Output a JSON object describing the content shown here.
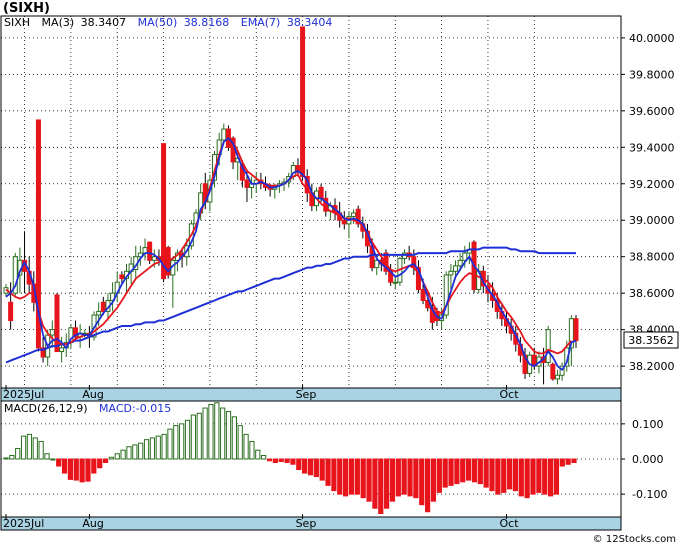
{
  "title": "(SIXH)",
  "indicators": {
    "symbol": "SIXH",
    "ma3_label": "MA(3)",
    "ma3_value": "38.3407",
    "ma50_label": "MA(50)",
    "ma50_value": "38.8168",
    "ema7_label": "EMA(7)",
    "ema7_value": "38.3404"
  },
  "last_price": "38.3562",
  "macd": {
    "label": "MACD(26,12,9)",
    "value_label": "MACD:-0.015"
  },
  "x_axis_labels": [
    "2025Jul",
    "Aug",
    "Sep",
    "Oct"
  ],
  "watermark": "© 12Stocks.com",
  "colors": {
    "up": "#2a6e1f",
    "down": "#e8141c",
    "ma_red": "#e8141c",
    "ma_blue": "#1f2fd6",
    "axis_band": "#a9d3e3"
  },
  "chart_data": [
    {
      "type": "candlestick",
      "title": "(SIXH)",
      "ylim": [
        38.08,
        40.12
      ],
      "yticks": [
        38.2,
        38.4,
        38.6,
        38.8,
        39.0,
        39.2,
        39.4,
        39.6,
        39.8,
        40.0
      ],
      "ytick_labels": [
        "38.2000",
        "38.4000",
        "38.6000",
        "38.8000",
        "39.0000",
        "39.2000",
        "39.4000",
        "39.6000",
        "39.8000",
        "40.0000"
      ],
      "months": [
        {
          "label": "2025Jul",
          "index": 0
        },
        {
          "label": "Aug",
          "index": 18
        },
        {
          "label": "Sep",
          "index": 64
        },
        {
          "label": "Oct",
          "index": 108
        }
      ],
      "candles": [
        [
          38.6,
          38.65,
          38.58,
          38.63
        ],
        [
          38.55,
          38.66,
          38.4,
          38.45
        ],
        [
          38.6,
          38.82,
          38.58,
          38.8
        ],
        [
          38.7,
          38.85,
          38.6,
          38.78
        ],
        [
          38.78,
          38.94,
          38.6,
          38.72
        ],
        [
          38.72,
          38.8,
          38.6,
          38.65
        ],
        [
          38.65,
          38.72,
          38.5,
          38.55
        ],
        [
          39.55,
          39.55,
          38.28,
          38.3
        ],
        [
          38.3,
          38.36,
          38.22,
          38.25
        ],
        [
          38.25,
          38.4,
          38.2,
          38.37
        ],
        [
          38.37,
          38.45,
          38.3,
          38.4
        ],
        [
          38.59,
          38.6,
          38.28,
          38.28
        ],
        [
          38.28,
          38.36,
          38.22,
          38.3
        ],
        [
          38.3,
          38.38,
          38.25,
          38.33
        ],
        [
          38.33,
          38.43,
          38.3,
          38.41
        ],
        [
          38.41,
          38.45,
          38.35,
          38.36
        ],
        [
          38.36,
          38.43,
          38.3,
          38.38
        ],
        [
          38.38,
          38.4,
          38.35,
          38.38
        ],
        [
          38.38,
          38.42,
          38.3,
          38.36
        ],
        [
          38.36,
          38.5,
          38.34,
          38.48
        ],
        [
          38.48,
          38.55,
          38.42,
          38.5
        ],
        [
          38.55,
          38.58,
          38.48,
          38.5
        ],
        [
          38.5,
          38.6,
          38.45,
          38.56
        ],
        [
          38.56,
          38.66,
          38.5,
          38.6
        ],
        [
          38.6,
          38.72,
          38.55,
          38.66
        ],
        [
          38.7,
          38.72,
          38.65,
          38.68
        ],
        [
          38.68,
          38.76,
          38.6,
          38.72
        ],
        [
          38.72,
          38.8,
          38.65,
          38.76
        ],
        [
          38.73,
          38.86,
          38.68,
          38.8
        ],
        [
          38.8,
          38.86,
          38.75,
          38.82
        ],
        [
          38.82,
          38.9,
          38.78,
          38.85
        ],
        [
          38.88,
          38.88,
          38.76,
          38.78
        ],
        [
          38.78,
          38.84,
          38.74,
          38.8
        ],
        [
          38.8,
          38.84,
          38.75,
          38.78
        ],
        [
          39.42,
          39.42,
          38.66,
          38.68
        ],
        [
          38.85,
          38.86,
          38.68,
          38.7
        ],
        [
          38.7,
          38.8,
          38.52,
          38.78
        ],
        [
          38.78,
          38.84,
          38.72,
          38.82
        ],
        [
          38.82,
          38.85,
          38.74,
          38.8
        ],
        [
          38.8,
          38.9,
          38.75,
          38.86
        ],
        [
          38.86,
          39.0,
          38.84,
          38.98
        ],
        [
          38.98,
          39.06,
          38.95,
          39.04
        ],
        [
          39.04,
          39.2,
          39.0,
          39.15
        ],
        [
          39.2,
          39.26,
          39.06,
          39.1
        ],
        [
          39.1,
          39.25,
          39.05,
          39.22
        ],
        [
          39.22,
          39.38,
          39.18,
          39.36
        ],
        [
          39.36,
          39.48,
          39.3,
          39.44
        ],
        [
          39.44,
          39.53,
          39.42,
          39.5
        ],
        [
          39.5,
          39.52,
          39.38,
          39.4
        ],
        [
          39.45,
          39.46,
          39.28,
          39.32
        ],
        [
          39.32,
          39.38,
          39.22,
          39.34
        ],
        [
          39.3,
          39.33,
          39.18,
          39.22
        ],
        [
          39.22,
          39.28,
          39.1,
          39.18
        ],
        [
          39.18,
          39.24,
          39.12,
          39.2
        ],
        [
          39.2,
          39.26,
          39.15,
          39.22
        ],
        [
          39.22,
          39.26,
          39.17,
          39.2
        ],
        [
          39.2,
          39.24,
          39.16,
          39.18
        ],
        [
          39.18,
          39.2,
          39.13,
          39.17
        ],
        [
          39.17,
          39.2,
          39.12,
          39.19
        ],
        [
          39.19,
          39.22,
          39.15,
          39.2
        ],
        [
          39.2,
          39.23,
          39.16,
          39.21
        ],
        [
          39.21,
          39.26,
          39.18,
          39.24
        ],
        [
          39.24,
          39.32,
          39.22,
          39.3
        ],
        [
          39.3,
          39.34,
          39.24,
          39.26
        ],
        [
          40.06,
          40.06,
          39.22,
          39.24
        ],
        [
          39.24,
          39.28,
          39.1,
          39.15
        ],
        [
          39.15,
          39.2,
          39.05,
          39.08
        ],
        [
          39.08,
          39.18,
          39.05,
          39.16
        ],
        [
          39.18,
          39.2,
          39.1,
          39.12
        ],
        [
          39.12,
          39.16,
          39.02,
          39.05
        ],
        [
          39.05,
          39.1,
          39.0,
          39.08
        ],
        [
          39.08,
          39.12,
          39.0,
          39.04
        ],
        [
          39.04,
          39.1,
          38.96,
          39.0
        ],
        [
          39.0,
          39.05,
          38.95,
          38.98
        ],
        [
          38.98,
          39.05,
          38.9,
          39.02
        ],
        [
          39.02,
          39.06,
          38.98,
          39.04
        ],
        [
          39.06,
          39.08,
          38.96,
          38.98
        ],
        [
          38.98,
          39.02,
          38.9,
          38.94
        ],
        [
          38.94,
          38.98,
          38.82,
          38.86
        ],
        [
          38.86,
          38.9,
          38.72,
          38.74
        ],
        [
          38.74,
          38.8,
          38.7,
          38.78
        ],
        [
          38.78,
          38.82,
          38.72,
          38.76
        ],
        [
          38.82,
          38.84,
          38.7,
          38.72
        ],
        [
          38.72,
          38.76,
          38.64,
          38.66
        ],
        [
          38.66,
          38.7,
          38.62,
          38.66
        ],
        [
          38.66,
          38.8,
          38.64,
          38.79
        ],
        [
          38.79,
          38.84,
          38.76,
          38.82
        ],
        [
          38.82,
          38.86,
          38.78,
          38.8
        ],
        [
          38.8,
          38.84,
          38.7,
          38.74
        ],
        [
          38.74,
          38.78,
          38.6,
          38.62
        ],
        [
          38.62,
          38.68,
          38.54,
          38.56
        ],
        [
          38.56,
          38.6,
          38.5,
          38.52
        ],
        [
          38.52,
          38.58,
          38.4,
          38.44
        ],
        [
          38.5,
          38.52,
          38.42,
          38.45
        ],
        [
          38.45,
          38.52,
          38.4,
          38.48
        ],
        [
          38.48,
          38.72,
          38.46,
          38.7
        ],
        [
          38.7,
          38.76,
          38.62,
          38.72
        ],
        [
          38.72,
          38.78,
          38.68,
          38.75
        ],
        [
          38.75,
          38.82,
          38.72,
          38.78
        ],
        [
          38.78,
          38.86,
          38.74,
          38.82
        ],
        [
          38.82,
          38.88,
          38.76,
          38.84
        ],
        [
          38.88,
          38.89,
          38.6,
          38.62
        ],
        [
          38.62,
          38.76,
          38.6,
          38.72
        ],
        [
          38.72,
          38.75,
          38.6,
          38.64
        ],
        [
          38.64,
          38.7,
          38.55,
          38.6
        ],
        [
          38.6,
          38.66,
          38.52,
          38.56
        ],
        [
          38.56,
          38.6,
          38.46,
          38.5
        ],
        [
          38.5,
          38.54,
          38.42,
          38.46
        ],
        [
          38.46,
          38.5,
          38.38,
          38.42
        ],
        [
          38.42,
          38.46,
          38.34,
          38.38
        ],
        [
          38.38,
          38.42,
          38.28,
          38.32
        ],
        [
          38.32,
          38.36,
          38.22,
          38.26
        ],
        [
          38.26,
          38.3,
          38.13,
          38.16
        ],
        [
          38.16,
          38.28,
          38.14,
          38.26
        ],
        [
          38.26,
          38.3,
          38.18,
          38.2
        ],
        [
          38.2,
          38.28,
          38.16,
          38.25
        ],
        [
          38.25,
          38.3,
          38.1,
          38.22
        ],
        [
          38.22,
          38.42,
          38.2,
          38.4
        ],
        [
          38.21,
          38.22,
          38.12,
          38.13
        ],
        [
          38.13,
          38.18,
          38.1,
          38.15
        ],
        [
          38.15,
          38.22,
          38.12,
          38.2
        ],
        [
          38.2,
          38.34,
          38.17,
          38.3
        ],
        [
          38.3,
          38.48,
          38.2,
          38.46
        ],
        [
          38.46,
          38.48,
          38.3,
          38.34
        ]
      ],
      "ma_red": [
        38.62,
        38.6,
        38.58,
        38.57,
        38.58,
        38.6,
        38.6,
        38.5,
        38.42,
        38.38,
        38.35,
        38.33,
        38.32,
        38.32,
        38.33,
        38.35,
        38.36,
        38.37,
        38.37,
        38.39,
        38.41,
        38.43,
        38.46,
        38.49,
        38.52,
        38.56,
        38.6,
        38.64,
        38.68,
        38.7,
        38.72,
        38.74,
        38.76,
        38.77,
        38.78,
        38.78,
        38.79,
        38.81,
        38.84,
        38.88,
        38.92,
        38.97,
        39.04,
        39.11,
        39.18,
        39.27,
        39.36,
        39.43,
        39.45,
        39.43,
        39.38,
        39.32,
        39.27,
        39.25,
        39.23,
        39.21,
        39.2,
        39.19,
        39.19,
        39.19,
        39.2,
        39.22,
        39.24,
        39.25,
        39.2,
        39.17,
        39.14,
        39.12,
        39.09,
        39.07,
        39.05,
        39.04,
        39.02,
        39.01,
        39.01,
        39.0,
        38.99,
        38.97,
        38.93,
        38.88,
        38.84,
        38.8,
        38.76,
        38.73,
        38.72,
        38.73,
        38.74,
        38.75,
        38.74,
        38.71,
        38.66,
        38.61,
        38.55,
        38.5,
        38.49,
        38.53,
        38.58,
        38.62,
        38.66,
        38.69,
        38.71,
        38.7,
        38.69,
        38.68,
        38.66,
        38.63,
        38.58,
        38.54,
        38.5,
        38.47,
        38.43,
        38.39,
        38.34,
        38.31,
        38.28,
        38.27,
        38.27,
        38.29,
        38.28,
        38.27,
        38.28,
        38.31,
        38.34
      ],
      "ma_blue_short": [
        38.58,
        38.6,
        38.64,
        38.72,
        38.77,
        38.72,
        38.64,
        38.5,
        38.37,
        38.31,
        38.34,
        38.35,
        38.33,
        38.3,
        38.35,
        38.37,
        38.38,
        38.37,
        38.37,
        38.41,
        38.45,
        38.49,
        38.52,
        38.55,
        38.6,
        38.65,
        38.69,
        38.72,
        38.75,
        38.79,
        38.82,
        38.82,
        38.81,
        38.79,
        38.75,
        38.72,
        38.75,
        38.77,
        38.8,
        38.83,
        38.88,
        38.94,
        39.06,
        39.1,
        39.16,
        39.24,
        39.34,
        39.43,
        39.45,
        39.42,
        39.35,
        39.29,
        39.25,
        39.2,
        39.2,
        39.21,
        39.2,
        39.18,
        39.18,
        39.19,
        39.2,
        39.22,
        39.26,
        39.27,
        39.25,
        39.22,
        39.15,
        39.12,
        39.12,
        39.1,
        39.08,
        39.06,
        39.04,
        39.01,
        39.0,
        39.01,
        39.0,
        38.98,
        38.93,
        38.86,
        38.79,
        38.76,
        38.74,
        38.72,
        38.69,
        38.7,
        38.72,
        38.75,
        38.76,
        38.73,
        38.66,
        38.58,
        38.51,
        38.47,
        38.46,
        38.53,
        38.61,
        38.69,
        38.73,
        38.77,
        38.8,
        38.75,
        38.72,
        38.66,
        38.62,
        38.59,
        38.55,
        38.5,
        38.46,
        38.42,
        38.37,
        38.32,
        38.25,
        38.21,
        38.2,
        38.22,
        38.24,
        38.28,
        38.25,
        38.2,
        38.18,
        38.22,
        38.33,
        38.34
      ],
      "ma50": [
        38.22,
        38.23,
        38.24,
        38.25,
        38.26,
        38.27,
        38.28,
        38.29,
        38.29,
        38.3,
        38.31,
        38.31,
        38.32,
        38.32,
        38.33,
        38.34,
        38.34,
        38.35,
        38.36,
        38.37,
        38.38,
        38.39,
        38.39,
        38.4,
        38.41,
        38.42,
        38.42,
        38.42,
        38.43,
        38.43,
        38.44,
        38.44,
        38.44,
        38.45,
        38.45,
        38.46,
        38.47,
        38.48,
        38.49,
        38.5,
        38.51,
        38.52,
        38.53,
        38.54,
        38.55,
        38.56,
        38.57,
        38.58,
        38.59,
        38.6,
        38.61,
        38.61,
        38.62,
        38.63,
        38.64,
        38.65,
        38.66,
        38.67,
        38.68,
        38.68,
        38.69,
        38.7,
        38.71,
        38.72,
        38.73,
        38.74,
        38.74,
        38.75,
        38.75,
        38.76,
        38.76,
        38.77,
        38.78,
        38.79,
        38.79,
        38.8,
        38.8,
        38.8,
        38.8,
        38.81,
        38.81,
        38.81,
        38.81,
        38.81,
        38.81,
        38.81,
        38.81,
        38.81,
        38.81,
        38.82,
        38.82,
        38.82,
        38.82,
        38.82,
        38.82,
        38.82,
        38.83,
        38.83,
        38.83,
        38.83,
        38.84,
        38.84,
        38.84,
        38.85,
        38.85,
        38.85,
        38.85,
        38.85,
        38.85,
        38.84,
        38.84,
        38.83,
        38.83,
        38.83,
        38.83,
        38.82,
        38.82,
        38.82,
        38.82,
        38.82,
        38.82,
        38.82,
        38.82,
        38.82
      ]
    },
    {
      "type": "bar",
      "title": "MACD(26,12,9)",
      "ylim": [
        -0.165,
        0.165
      ],
      "yticks": [
        0.1,
        0.0,
        -0.1
      ],
      "ytick_labels": [
        "0.100",
        "0.000",
        "-0.100"
      ],
      "values": [
        0.003,
        0.01,
        0.03,
        0.065,
        0.07,
        0.06,
        0.05,
        0.015,
        0.0,
        -0.02,
        -0.04,
        -0.058,
        -0.06,
        -0.065,
        -0.063,
        -0.04,
        -0.025,
        -0.01,
        0.005,
        0.015,
        0.025,
        0.035,
        0.04,
        0.045,
        0.055,
        0.06,
        0.065,
        0.07,
        0.085,
        0.095,
        0.1,
        0.11,
        0.125,
        0.13,
        0.145,
        0.155,
        0.16,
        0.145,
        0.135,
        0.12,
        0.095,
        0.07,
        0.05,
        0.025,
        0.01,
        -0.005,
        -0.01,
        -0.007,
        -0.01,
        -0.015,
        -0.03,
        -0.04,
        -0.045,
        -0.05,
        -0.06,
        -0.075,
        -0.09,
        -0.1,
        -0.105,
        -0.1,
        -0.1,
        -0.11,
        -0.12,
        -0.14,
        -0.155,
        -0.14,
        -0.12,
        -0.105,
        -0.1,
        -0.105,
        -0.11,
        -0.13,
        -0.15,
        -0.12,
        -0.095,
        -0.08,
        -0.075,
        -0.07,
        -0.065,
        -0.06,
        -0.065,
        -0.07,
        -0.08,
        -0.09,
        -0.1,
        -0.095,
        -0.085,
        -0.09,
        -0.105,
        -0.11,
        -0.1,
        -0.095,
        -0.1,
        -0.105,
        -0.1,
        -0.02,
        -0.015,
        -0.01
      ]
    }
  ]
}
